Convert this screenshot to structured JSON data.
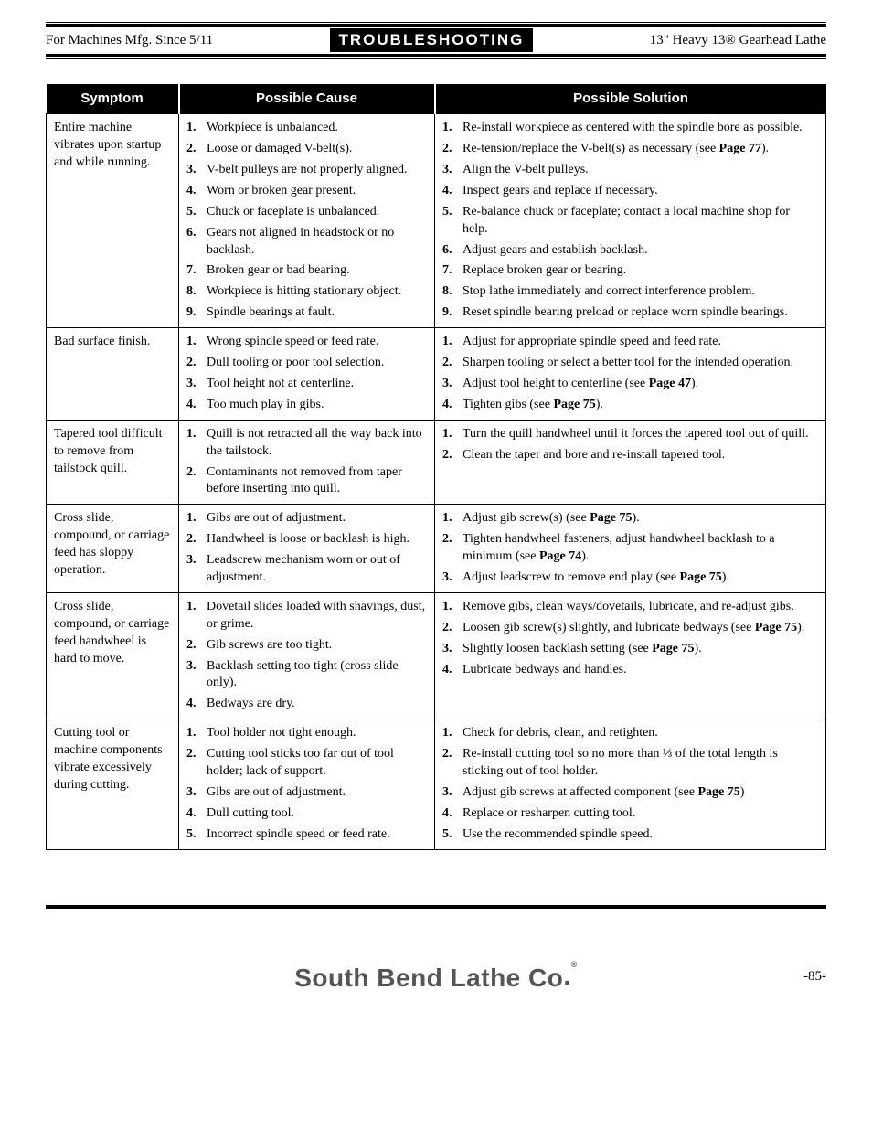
{
  "header": {
    "left": "For Machines Mfg. Since 5/11",
    "center": "TROUBLESHOOTING",
    "right": "13\" Heavy 13® Gearhead Lathe"
  },
  "columns": [
    "Symptom",
    "Possible Cause",
    "Possible Solution"
  ],
  "rows": [
    {
      "symptom": "Entire machine vibrates upon startup and while running.",
      "causes": [
        "Workpiece is unbalanced.",
        "Loose or damaged V-belt(s).",
        "V-belt pulleys are not properly aligned.",
        "Worn or broken gear present.",
        "Chuck or faceplate is unbalanced.",
        "Gears not aligned in headstock or no backlash.",
        "Broken gear or bad bearing.",
        "Workpiece is hitting stationary object.",
        "Spindle bearings at fault."
      ],
      "solutions": [
        "Re-install workpiece as centered with the spindle bore as possible.",
        "Re-tension/replace the V-belt(s) as necessary (see <b class='pg'>Page 77</b>).",
        "Align the V-belt pulleys.",
        "Inspect gears and replace if necessary.",
        "Re-balance chuck or faceplate; contact a local machine shop for help.",
        "Adjust gears and establish backlash.",
        "Replace broken gear or bearing.",
        "Stop lathe immediately and correct interference problem.",
        "Reset spindle bearing preload or replace worn spindle bearings."
      ]
    },
    {
      "symptom": "Bad surface finish.",
      "causes": [
        "Wrong spindle speed or feed rate.",
        "Dull tooling or poor tool selection.",
        "Tool height not at centerline.",
        "Too much play in gibs."
      ],
      "solutions": [
        "Adjust for appropriate spindle speed and feed rate.",
        "Sharpen tooling or select a better tool for the intended operation.",
        "Adjust tool height to centerline (see <b class='pg'>Page 47</b>).",
        "Tighten gibs (see <b class='pg'>Page 75</b>)."
      ]
    },
    {
      "symptom": "Tapered tool difficult to remove from tailstock quill.",
      "causes": [
        "Quill is not retracted all the way back into the tailstock.",
        "Contaminants not removed from taper before inserting into quill."
      ],
      "solutions": [
        "Turn the quill handwheel until it forces the tapered tool out of quill.",
        "Clean the taper and bore and re-install tapered tool."
      ]
    },
    {
      "symptom": "Cross slide, compound, or carriage feed has sloppy operation.",
      "causes": [
        "Gibs are out of adjustment.",
        "Handwheel is loose or backlash is high.",
        "Leadscrew mechanism worn or out of adjustment."
      ],
      "solutions": [
        "Adjust gib screw(s) (see <b class='pg'>Page 75</b>).",
        "Tighten handwheel fasteners, adjust handwheel backlash to a minimum (see <b class='pg'>Page 74</b>).",
        "Adjust leadscrew to remove end play (see <b class='pg'>Page 75</b>)."
      ]
    },
    {
      "symptom": "Cross slide, compound, or carriage feed handwheel is hard to move.",
      "causes": [
        "Dovetail slides loaded with shavings, dust, or grime.",
        "Gib screws are too tight.",
        "Backlash setting too tight (cross slide only).",
        "Bedways are dry."
      ],
      "solutions": [
        "Remove gibs, clean ways/dovetails, lubricate, and re-adjust gibs.",
        "Loosen gib screw(s) slightly, and lubricate bedways (see <b class='pg'>Page 75</b>).",
        "Slightly loosen backlash setting (see <b class='pg'>Page 75</b>).",
        "Lubricate bedways and handles."
      ]
    },
    {
      "symptom": "Cutting tool or machine components vibrate excessively during cutting.",
      "causes": [
        "Tool holder not tight enough.",
        "Cutting tool sticks too far out of tool holder; lack of support.",
        "Gibs are out of adjustment.",
        "Dull cutting tool.",
        "Incorrect spindle speed or feed rate."
      ],
      "solutions": [
        "Check for debris, clean, and retighten.",
        "Re-install cutting tool so no more than ⅓ of the total length is sticking out of tool holder.",
        "Adjust gib screws at affected component (see <b class='pg'>Page 75</b>)",
        "Replace or resharpen cutting tool.",
        "Use the recommended spindle speed."
      ]
    }
  ],
  "footer": {
    "brand": "South Bend Lathe Co.",
    "page": "-85-"
  }
}
